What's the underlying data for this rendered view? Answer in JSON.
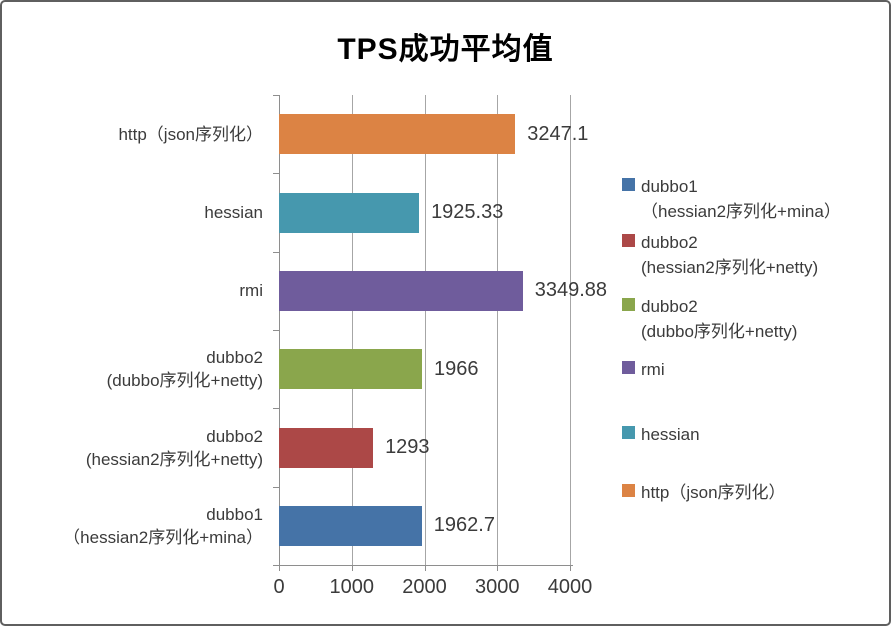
{
  "window": {
    "background": "#ffffff",
    "border_color": "#5f5f5f"
  },
  "chart_data": {
    "type": "bar",
    "orientation": "horizontal",
    "title": "TPS成功平均值",
    "xlabel": "",
    "ylabel": "",
    "xlim": [
      0,
      4000
    ],
    "x_ticks": [
      0,
      1000,
      2000,
      3000,
      4000
    ],
    "grid": true,
    "legend_position": "right",
    "bars": [
      {
        "category_lines": [
          "http（json序列化）"
        ],
        "value": 3247.1,
        "value_label": "3247.1",
        "color": "#DC8344"
      },
      {
        "category_lines": [
          "hessian"
        ],
        "value": 1925.33,
        "value_label": "1925.33",
        "color": "#4698AE"
      },
      {
        "category_lines": [
          "rmi"
        ],
        "value": 3349.88,
        "value_label": "3349.88",
        "color": "#6F5C9C"
      },
      {
        "category_lines": [
          "dubbo2",
          "(dubbo序列化+netty)"
        ],
        "value": 1966,
        "value_label": "1966",
        "color": "#8AA64C"
      },
      {
        "category_lines": [
          "dubbo2",
          "(hessian2序列化+netty)"
        ],
        "value": 1293,
        "value_label": "1293",
        "color": "#AC4847"
      },
      {
        "category_lines": [
          "dubbo1",
          "（hessian2序列化+mina）"
        ],
        "value": 1962.7,
        "value_label": "1962.7",
        "color": "#4573A7"
      }
    ],
    "legend": [
      {
        "label_lines": [
          "dubbo1",
          "（hessian2序列化+mina）"
        ],
        "color": "#4573A7"
      },
      {
        "label_lines": [
          "dubbo2",
          "(hessian2序列化+netty)"
        ],
        "color": "#AC4847"
      },
      {
        "label_lines": [
          "dubbo2",
          "(dubbo序列化+netty)"
        ],
        "color": "#8AA64C"
      },
      {
        "label_lines": [
          "rmi"
        ],
        "color": "#6F5C9C"
      },
      {
        "label_lines": [
          "hessian"
        ],
        "color": "#4698AE"
      },
      {
        "label_lines": [
          "http（json序列化）"
        ],
        "color": "#DC8344"
      }
    ]
  }
}
